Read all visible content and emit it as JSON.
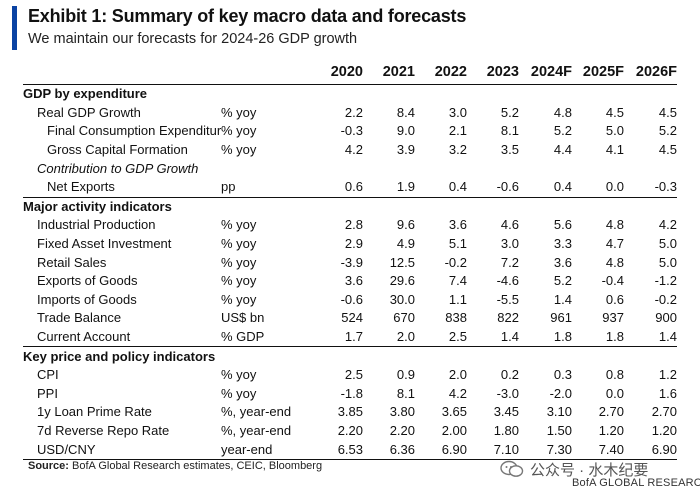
{
  "header": {
    "title": "Exhibit 1: Summary of key macro data and forecasts",
    "subtitle": "We maintain our forecasts for 2024-26 GDP growth"
  },
  "table": {
    "columns": [
      "2020",
      "2021",
      "2022",
      "2023",
      "2024F",
      "2025F",
      "2026F"
    ],
    "sections": [
      {
        "title": "GDP by expenditure",
        "rows": [
          {
            "label": "Real GDP Growth",
            "unit": "% yoy",
            "values": [
              "2.2",
              "8.4",
              "3.0",
              "5.2",
              "4.8",
              "4.5",
              "4.5"
            ]
          },
          {
            "label": "Final Consumption Expenditure",
            "unit": "% yoy",
            "values": [
              "-0.3",
              "9.0",
              "2.1",
              "8.1",
              "5.2",
              "5.0",
              "5.2"
            ]
          },
          {
            "label": "Gross Capital Formation",
            "unit": "% yoy",
            "values": [
              "4.2",
              "3.9",
              "3.2",
              "3.5",
              "4.4",
              "4.1",
              "4.5"
            ]
          },
          {
            "label": "Contribution to GDP Growth",
            "unit": "",
            "values": [
              "",
              "",
              "",
              "",
              "",
              "",
              ""
            ]
          },
          {
            "label": "Net Exports",
            "unit": "pp",
            "values": [
              "0.6",
              "1.9",
              "0.4",
              "-0.6",
              "0.4",
              "0.0",
              "-0.3"
            ]
          }
        ]
      },
      {
        "title": "Major activity indicators",
        "rows": [
          {
            "label": "Industrial Production",
            "unit": "% yoy",
            "values": [
              "2.8",
              "9.6",
              "3.6",
              "4.6",
              "5.6",
              "4.8",
              "4.2"
            ]
          },
          {
            "label": "Fixed Asset Investment",
            "unit": "% yoy",
            "values": [
              "2.9",
              "4.9",
              "5.1",
              "3.0",
              "3.3",
              "4.7",
              "5.0"
            ]
          },
          {
            "label": "Retail Sales",
            "unit": "% yoy",
            "values": [
              "-3.9",
              "12.5",
              "-0.2",
              "7.2",
              "3.6",
              "4.8",
              "5.0"
            ]
          },
          {
            "label": "Exports of Goods",
            "unit": "% yoy",
            "values": [
              "3.6",
              "29.6",
              "7.4",
              "-4.6",
              "5.2",
              "-0.4",
              "-1.2"
            ]
          },
          {
            "label": "Imports of Goods",
            "unit": "% yoy",
            "values": [
              "-0.6",
              "30.0",
              "1.1",
              "-5.5",
              "1.4",
              "0.6",
              "-0.2"
            ]
          },
          {
            "label": "Trade Balance",
            "unit": "US$ bn",
            "values": [
              "524",
              "670",
              "838",
              "822",
              "961",
              "937",
              "900"
            ]
          },
          {
            "label": "Current Account",
            "unit": "% GDP",
            "values": [
              "1.7",
              "2.0",
              "2.5",
              "1.4",
              "1.8",
              "1.8",
              "1.4"
            ]
          }
        ]
      },
      {
        "title": "Key price and policy indicators",
        "rows": [
          {
            "label": "CPI",
            "unit": "% yoy",
            "values": [
              "2.5",
              "0.9",
              "2.0",
              "0.2",
              "0.3",
              "0.8",
              "1.2"
            ]
          },
          {
            "label": "PPI",
            "unit": "% yoy",
            "values": [
              "-1.8",
              "8.1",
              "4.2",
              "-3.0",
              "-2.0",
              "0.0",
              "1.6"
            ]
          },
          {
            "label": "1y Loan Prime Rate",
            "unit": "%, year-end",
            "values": [
              "3.85",
              "3.80",
              "3.65",
              "3.45",
              "3.10",
              "2.70",
              "2.70"
            ]
          },
          {
            "label": "7d Reverse Repo Rate",
            "unit": "%, year-end",
            "values": [
              "2.20",
              "2.20",
              "2.00",
              "1.80",
              "1.50",
              "1.20",
              "1.20"
            ]
          },
          {
            "label": "USD/CNY",
            "unit": "year-end",
            "values": [
              "6.53",
              "6.36",
              "6.90",
              "7.10",
              "7.30",
              "7.40",
              "6.90"
            ]
          }
        ]
      }
    ]
  },
  "footer": {
    "source_label": "Source:",
    "source_text": " BofA Global Research estimates, CEIC, Bloomberg"
  },
  "watermark": {
    "icon": "wechat-icon",
    "text": "公众号 · 水木纪要",
    "brand": "BofA GLOBAL RESEARCH"
  },
  "colors": {
    "accent": "#0a43a3"
  }
}
